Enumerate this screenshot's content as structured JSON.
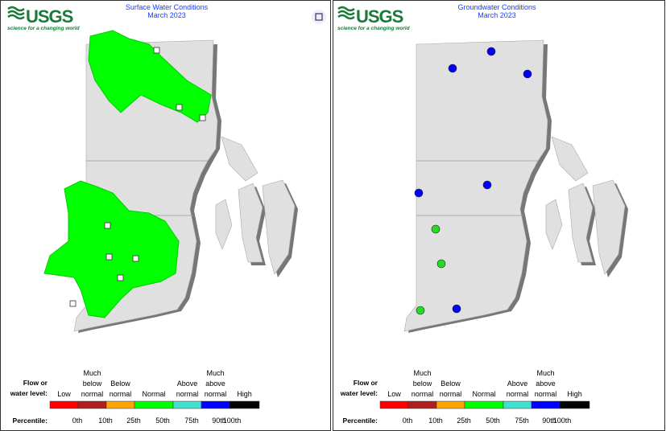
{
  "panels": [
    {
      "logo": "USGS",
      "tagline": "science for a changing world",
      "title": "Surface Water Conditions",
      "subtitle": "March 2023"
    },
    {
      "logo": "USGS",
      "tagline": "science for a changing world",
      "title": "Groundwater Conditions",
      "subtitle": "March 2023"
    }
  ],
  "legend": {
    "heading": [
      "Flow or",
      "water level:"
    ],
    "classes": [
      {
        "label": [
          "Low"
        ],
        "color": "#ff0000"
      },
      {
        "label": [
          "Much",
          "below",
          "normal"
        ],
        "color": "#b01e1e"
      },
      {
        "label": [
          "Below",
          "normal"
        ],
        "color": "#ffa500"
      },
      {
        "label": [
          "Normal"
        ],
        "color": "#00ff00"
      },
      {
        "label": [
          "Above",
          "normal"
        ],
        "color": "#40e0d0"
      },
      {
        "label": [
          "Much",
          "above",
          "normal"
        ],
        "color": "#0000ff"
      },
      {
        "label": [
          "High"
        ],
        "color": "#000000"
      }
    ],
    "percentile_heading": "Percentile:",
    "percentiles": [
      "0th",
      "10th",
      "25th",
      "50th",
      "75th",
      "90th",
      "100th"
    ]
  }
}
